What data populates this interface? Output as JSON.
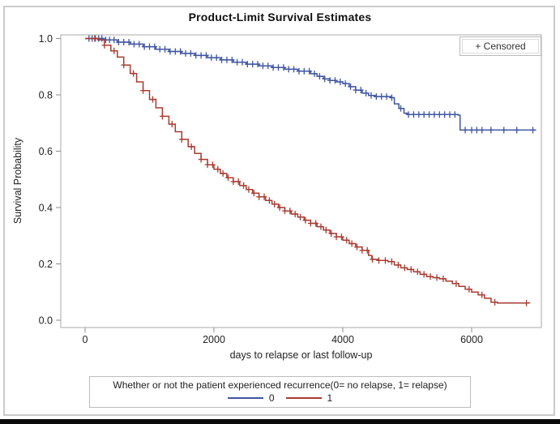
{
  "title": "Product-Limit Survival Estimates",
  "censored_inset": {
    "label": "+ Censored"
  },
  "axes": {
    "x_label": "days to relapse or last follow-up",
    "y_label": "Survival Probability"
  },
  "legend": {
    "title": "Whether or not the patient experienced recurrence(0= no relapse, 1= relapse)",
    "entries": [
      {
        "label": "0",
        "color": "#3f55a0"
      },
      {
        "label": "1",
        "color": "#a83b30"
      }
    ]
  },
  "colors": {
    "group0_blue": "#3f55a0",
    "group1_red": "#a83b30",
    "plot_border": "#a9a9a9",
    "outer_frame": "#cbcbcb"
  },
  "chart_data": {
    "type": "line",
    "subtype": "kaplan-meier-step",
    "title": "Product-Limit Survival Estimates",
    "xlabel": "days to relapse or last follow-up",
    "ylabel": "Survival Probability",
    "xlim": [
      0,
      7100
    ],
    "ylim": [
      0.0,
      1.0
    ],
    "x_ticks": [
      0,
      2000,
      4000,
      6000
    ],
    "y_ticks": [
      0.0,
      0.2,
      0.4,
      0.6,
      0.8,
      1.0
    ],
    "grid": false,
    "legend_position": "bottom",
    "censored_marker": "+",
    "series": [
      {
        "name": "0",
        "description": "no relapse",
        "color": "#3f55a0",
        "points": [
          [
            0,
            1.0
          ],
          [
            300,
            0.995
          ],
          [
            500,
            0.987
          ],
          [
            700,
            0.98
          ],
          [
            900,
            0.971
          ],
          [
            1100,
            0.962
          ],
          [
            1300,
            0.954
          ],
          [
            1500,
            0.947
          ],
          [
            1700,
            0.94
          ],
          [
            1900,
            0.932
          ],
          [
            2100,
            0.924
          ],
          [
            2300,
            0.916
          ],
          [
            2500,
            0.909
          ],
          [
            2700,
            0.903
          ],
          [
            2900,
            0.897
          ],
          [
            3100,
            0.891
          ],
          [
            3300,
            0.884
          ],
          [
            3500,
            0.875
          ],
          [
            3600,
            0.866
          ],
          [
            3700,
            0.857
          ],
          [
            3800,
            0.851
          ],
          [
            3900,
            0.846
          ],
          [
            4000,
            0.84
          ],
          [
            4100,
            0.829
          ],
          [
            4200,
            0.817
          ],
          [
            4300,
            0.806
          ],
          [
            4400,
            0.798
          ],
          [
            4500,
            0.794
          ],
          [
            4750,
            0.79
          ],
          [
            4800,
            0.768
          ],
          [
            4870,
            0.752
          ],
          [
            4950,
            0.735
          ],
          [
            5000,
            0.73
          ],
          [
            5790,
            0.728
          ],
          [
            5820,
            0.675
          ],
          [
            7000,
            0.675
          ]
        ],
        "censor_days": [
          60,
          110,
          160,
          210,
          260,
          320,
          380,
          450,
          520,
          600,
          680,
          760,
          840,
          920,
          1000,
          1080,
          1160,
          1240,
          1320,
          1400,
          1480,
          1560,
          1640,
          1720,
          1800,
          1880,
          1960,
          2040,
          2120,
          2200,
          2280,
          2360,
          2440,
          2520,
          2600,
          2680,
          2760,
          2840,
          2920,
          3000,
          3080,
          3160,
          3240,
          3320,
          3400,
          3480,
          3560,
          3640,
          3720,
          3800,
          3880,
          3960,
          4040,
          4120,
          4200,
          4280,
          4360,
          4440,
          4520,
          4600,
          4680,
          4760,
          4900,
          5020,
          5100,
          5180,
          5260,
          5340,
          5420,
          5500,
          5580,
          5660,
          5740,
          5900,
          6000,
          6080,
          6160,
          6300,
          6500,
          6700,
          6950
        ]
      },
      {
        "name": "1",
        "description": "relapse",
        "color": "#a83b30",
        "points": [
          [
            0,
            1.0
          ],
          [
            200,
            0.995
          ],
          [
            300,
            0.976
          ],
          [
            400,
            0.956
          ],
          [
            500,
            0.934
          ],
          [
            600,
            0.906
          ],
          [
            700,
            0.876
          ],
          [
            800,
            0.846
          ],
          [
            900,
            0.815
          ],
          [
            1000,
            0.784
          ],
          [
            1100,
            0.754
          ],
          [
            1200,
            0.724
          ],
          [
            1300,
            0.696
          ],
          [
            1400,
            0.669
          ],
          [
            1500,
            0.642
          ],
          [
            1600,
            0.616
          ],
          [
            1700,
            0.592
          ],
          [
            1800,
            0.571
          ],
          [
            1900,
            0.552
          ],
          [
            2000,
            0.536
          ],
          [
            2100,
            0.521
          ],
          [
            2200,
            0.506
          ],
          [
            2300,
            0.492
          ],
          [
            2400,
            0.478
          ],
          [
            2500,
            0.464
          ],
          [
            2600,
            0.451
          ],
          [
            2700,
            0.438
          ],
          [
            2800,
            0.425
          ],
          [
            2900,
            0.412
          ],
          [
            3000,
            0.4
          ],
          [
            3100,
            0.388
          ],
          [
            3200,
            0.377
          ],
          [
            3300,
            0.366
          ],
          [
            3400,
            0.355
          ],
          [
            3500,
            0.344
          ],
          [
            3600,
            0.332
          ],
          [
            3700,
            0.32
          ],
          [
            3800,
            0.308
          ],
          [
            3900,
            0.296
          ],
          [
            4000,
            0.284
          ],
          [
            4100,
            0.272
          ],
          [
            4200,
            0.26
          ],
          [
            4300,
            0.248
          ],
          [
            4400,
            0.23
          ],
          [
            4450,
            0.216
          ],
          [
            4550,
            0.212
          ],
          [
            4700,
            0.208
          ],
          [
            4800,
            0.196
          ],
          [
            4900,
            0.186
          ],
          [
            5000,
            0.18
          ],
          [
            5100,
            0.172
          ],
          [
            5200,
            0.163
          ],
          [
            5300,
            0.155
          ],
          [
            5400,
            0.151
          ],
          [
            5500,
            0.147
          ],
          [
            5600,
            0.139
          ],
          [
            5700,
            0.13
          ],
          [
            5800,
            0.12
          ],
          [
            5900,
            0.11
          ],
          [
            6000,
            0.1
          ],
          [
            6100,
            0.09
          ],
          [
            6200,
            0.078
          ],
          [
            6300,
            0.064
          ],
          [
            6400,
            0.061
          ],
          [
            6900,
            0.06
          ]
        ],
        "censor_days": [
          150,
          300,
          450,
          600,
          750,
          900,
          1050,
          1200,
          1350,
          1500,
          1650,
          1800,
          1900,
          1980,
          2060,
          2140,
          2220,
          2300,
          2380,
          2460,
          2540,
          2620,
          2700,
          2780,
          2860,
          2940,
          3020,
          3100,
          3180,
          3260,
          3340,
          3420,
          3500,
          3580,
          3660,
          3740,
          3820,
          3900,
          3980,
          4060,
          4140,
          4220,
          4300,
          4380,
          4460,
          4560,
          4660,
          4760,
          4860,
          4960,
          5060,
          5160,
          5260,
          5360,
          5460,
          5560,
          5760,
          5960,
          6160,
          6360,
          6850
        ]
      }
    ]
  }
}
